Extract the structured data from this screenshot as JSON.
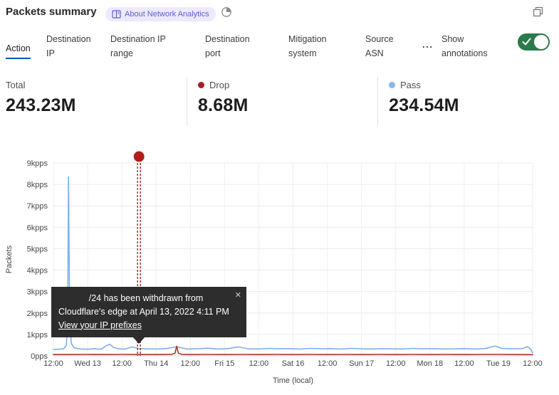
{
  "header": {
    "title": "Packets summary",
    "badge": {
      "label": "About Network Analytics",
      "color": "#5c5dd2",
      "bg": "#edeafd"
    },
    "icons": {
      "history": "time-pie-icon",
      "window": "overlapping-windows-icon"
    }
  },
  "tabs": {
    "items": [
      {
        "label": "Action",
        "active": true
      },
      {
        "label": "Destination IP",
        "active": false
      },
      {
        "label": "Destination IP range",
        "active": false
      },
      {
        "label": "Destination port",
        "active": false
      },
      {
        "label": "Mitigation system",
        "active": false
      },
      {
        "label": "Source ASN",
        "active": false
      }
    ],
    "more_label": "...",
    "active_color": "#0051c3"
  },
  "annotations_toggle": {
    "label": "Show annotations",
    "state": "on",
    "color": "#2a7a4b"
  },
  "stats": [
    {
      "label": "Total",
      "value": "243.23M",
      "dot_color": null
    },
    {
      "label": "Drop",
      "value": "8.68M",
      "dot_color": "#a82121"
    },
    {
      "label": "Pass",
      "value": "234.54M",
      "dot_color": "#8cb6e9"
    }
  ],
  "chart_data": {
    "type": "line",
    "title": "Packets summary over time by action",
    "xlabel": "Time (local)",
    "ylabel": "Packets",
    "x_ticks": [
      "12:00",
      "Wed 13",
      "12:00",
      "Thu 14",
      "12:00",
      "Fri 15",
      "12:00",
      "Sat 16",
      "12:00",
      "Sun 17",
      "12:00",
      "Mon 18",
      "12:00",
      "Tue 19",
      "12:00"
    ],
    "y_ticks": [
      "0pps",
      "1kpps",
      "2kpps",
      "3kpps",
      "4kpps",
      "5kpps",
      "6kpps",
      "7kpps",
      "8kpps",
      "9kpps"
    ],
    "xlim": [
      0,
      14
    ],
    "ylim": [
      0,
      9000
    ],
    "grid": true,
    "legend_position": "stats-row-above",
    "series": [
      {
        "name": "Pass",
        "color": "#7fafe8",
        "unit": "pps",
        "points": [
          [
            0,
            300
          ],
          [
            0.15,
            310
          ],
          [
            0.3,
            330
          ],
          [
            0.38,
            500
          ],
          [
            0.42,
            2500
          ],
          [
            0.44,
            8350
          ],
          [
            0.47,
            2600
          ],
          [
            0.52,
            600
          ],
          [
            0.6,
            380
          ],
          [
            0.8,
            320
          ],
          [
            1.0,
            310
          ],
          [
            1.2,
            330
          ],
          [
            1.4,
            310
          ],
          [
            1.55,
            480
          ],
          [
            1.65,
            540
          ],
          [
            1.75,
            400
          ],
          [
            1.9,
            330
          ],
          [
            2.1,
            320
          ],
          [
            2.3,
            420
          ],
          [
            2.5,
            340
          ],
          [
            2.7,
            330
          ],
          [
            3.0,
            320
          ],
          [
            3.3,
            340
          ],
          [
            3.6,
            430
          ],
          [
            3.9,
            320
          ],
          [
            4.2,
            330
          ],
          [
            4.5,
            360
          ],
          [
            4.8,
            320
          ],
          [
            5.1,
            340
          ],
          [
            5.4,
            420
          ],
          [
            5.7,
            330
          ],
          [
            6.0,
            320
          ],
          [
            6.3,
            350
          ],
          [
            6.6,
            330
          ],
          [
            6.9,
            340
          ],
          [
            7.2,
            320
          ],
          [
            7.5,
            350
          ],
          [
            7.8,
            330
          ],
          [
            8.1,
            340
          ],
          [
            8.4,
            320
          ],
          [
            8.7,
            350
          ],
          [
            9.0,
            330
          ],
          [
            9.3,
            320
          ],
          [
            9.6,
            340
          ],
          [
            9.9,
            330
          ],
          [
            10.2,
            320
          ],
          [
            10.5,
            350
          ],
          [
            10.8,
            330
          ],
          [
            11.1,
            340
          ],
          [
            11.4,
            320
          ],
          [
            11.7,
            330
          ],
          [
            12.0,
            340
          ],
          [
            12.3,
            320
          ],
          [
            12.6,
            340
          ],
          [
            12.9,
            460
          ],
          [
            13.1,
            350
          ],
          [
            13.4,
            330
          ],
          [
            13.7,
            340
          ],
          [
            13.85,
            430
          ],
          [
            13.95,
            300
          ],
          [
            14,
            130
          ]
        ]
      },
      {
        "name": "Drop",
        "color": "#a93226",
        "unit": "pps",
        "points": [
          [
            0,
            60
          ],
          [
            0.5,
            60
          ],
          [
            1,
            65
          ],
          [
            1.5,
            60
          ],
          [
            2,
            65
          ],
          [
            2.5,
            60
          ],
          [
            3,
            60
          ],
          [
            3.45,
            70
          ],
          [
            3.55,
            120
          ],
          [
            3.6,
            450
          ],
          [
            3.65,
            120
          ],
          [
            3.75,
            70
          ],
          [
            4,
            60
          ],
          [
            4.5,
            65
          ],
          [
            5,
            60
          ],
          [
            5.5,
            65
          ],
          [
            6,
            60
          ],
          [
            6.5,
            65
          ],
          [
            7,
            60
          ],
          [
            7.5,
            65
          ],
          [
            8,
            60
          ],
          [
            8.5,
            65
          ],
          [
            9,
            60
          ],
          [
            9.5,
            65
          ],
          [
            10,
            60
          ],
          [
            10.5,
            65
          ],
          [
            11,
            60
          ],
          [
            11.5,
            65
          ],
          [
            12,
            60
          ],
          [
            12.5,
            65
          ],
          [
            13,
            65
          ],
          [
            13.5,
            60
          ],
          [
            14,
            55
          ]
        ]
      }
    ],
    "annotation": {
      "x": 2.5,
      "marker_color": "#b01e1e",
      "line_style": "double-dashed",
      "tooltip": {
        "line1": "/24 has been withdrawn from",
        "line2": "Cloudflare's edge at April 13, 2022 4:11 PM",
        "link": "View your IP prefixes",
        "close": "✕"
      }
    }
  }
}
